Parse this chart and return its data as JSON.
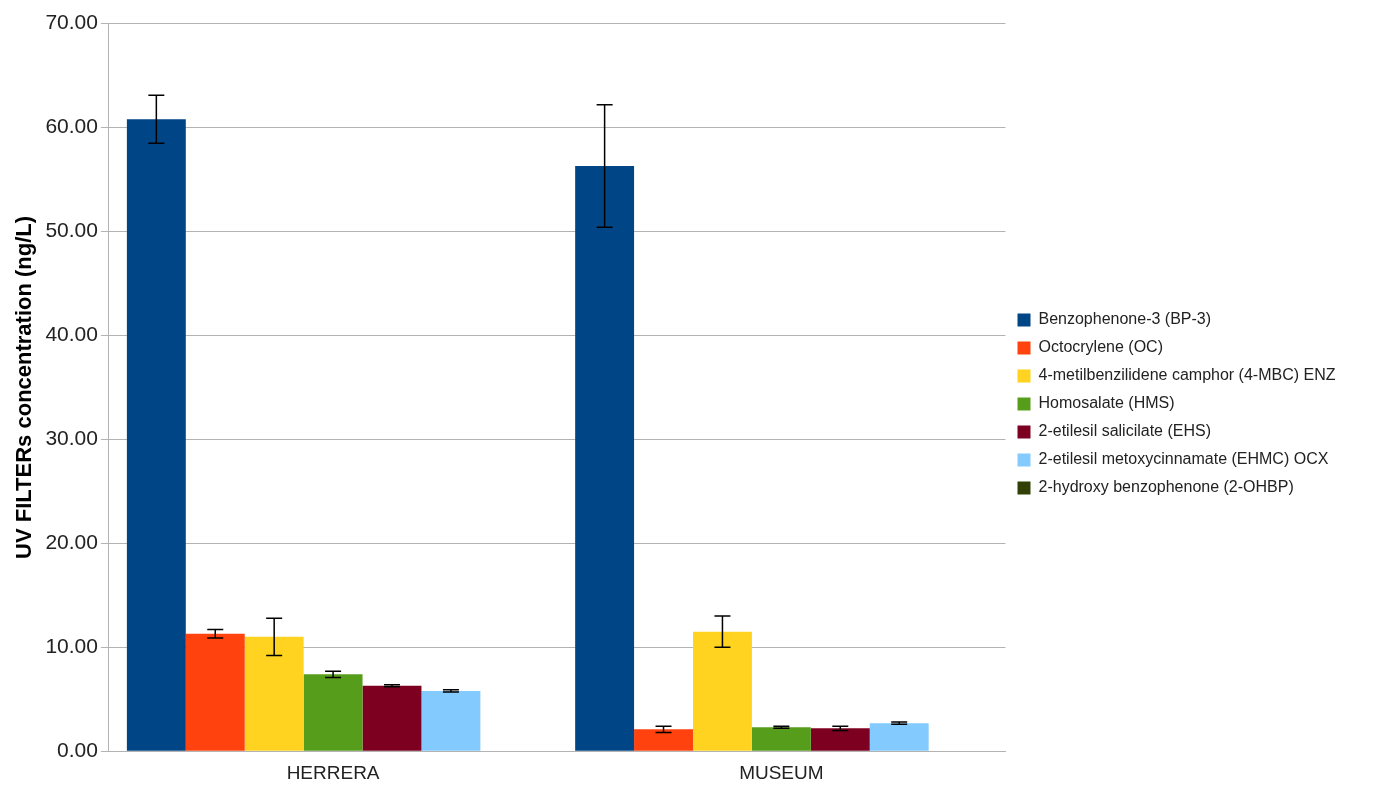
{
  "chart_data": {
    "type": "bar",
    "ylabel": "UV FILTERs concentration (ng/L)",
    "categories": [
      "HERRERA",
      "MUSEUM"
    ],
    "series": [
      {
        "name": "Benzophenone-3 (BP-3)",
        "color": "#004586",
        "values": [
          60.8,
          56.3
        ],
        "errors": [
          2.3,
          5.9
        ]
      },
      {
        "name": "Octocrylene (OC)",
        "color": "#ff420e",
        "values": [
          11.3,
          2.1
        ],
        "errors": [
          0.4,
          0.3
        ]
      },
      {
        "name": "4-metilbenzilidene camphor (4-MBC) ENZ",
        "color": "#ffd320",
        "values": [
          11.0,
          11.5
        ],
        "errors": [
          1.8,
          1.5
        ]
      },
      {
        "name": "Homosalate (HMS)",
        "color": "#579d1c",
        "values": [
          7.4,
          2.3
        ],
        "errors": [
          0.3,
          0.1
        ]
      },
      {
        "name": "2-etilesil salicilate (EHS)",
        "color": "#7e0021",
        "values": [
          6.3,
          2.2
        ],
        "errors": [
          0.1,
          0.2
        ]
      },
      {
        "name": "2-etilesil metoxycinnamate (EHMC) OCX",
        "color": "#83caff",
        "values": [
          5.8,
          2.7
        ],
        "errors": [
          0.1,
          0.1
        ]
      },
      {
        "name": "2-hydroxy benzophenone (2-OHBP)",
        "color": "#314004",
        "values": [
          null,
          null
        ]
      }
    ],
    "ylim": [
      0,
      70
    ],
    "yticks": [
      {
        "value": 0,
        "label": "0.00"
      },
      {
        "value": 10,
        "label": "10.00"
      },
      {
        "value": 20,
        "label": "20.00"
      },
      {
        "value": 30,
        "label": "30.00"
      },
      {
        "value": 40,
        "label": "40.00"
      },
      {
        "value": 50,
        "label": "50.00"
      },
      {
        "value": 60,
        "label": "60.00"
      },
      {
        "value": 70,
        "label": "70.00"
      }
    ],
    "grid": "y",
    "legend": "right"
  }
}
